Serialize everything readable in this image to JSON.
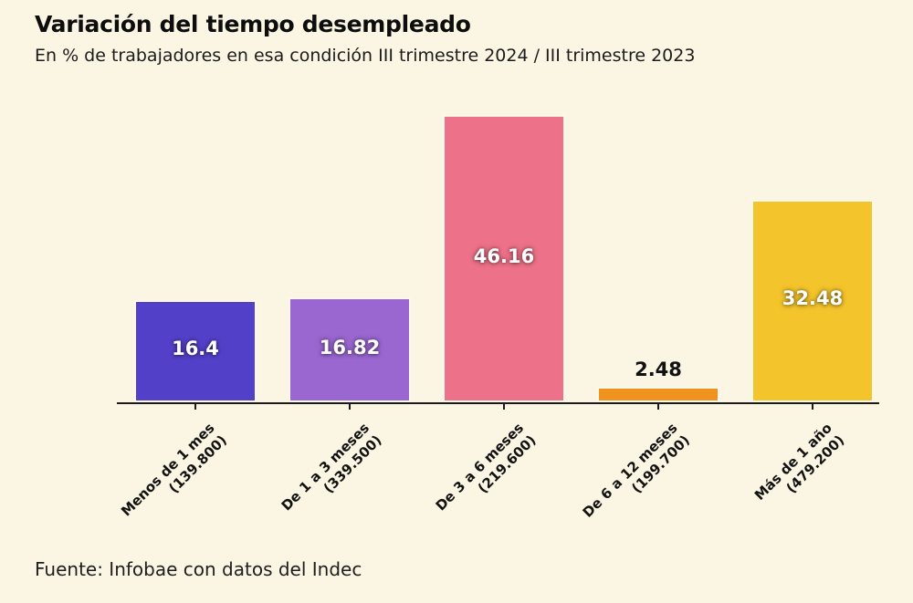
{
  "chart_data": {
    "type": "bar",
    "title": "Variación del tiempo desempleado",
    "subtitle": "En % de trabajadores en esa condición III trimestre 2024 / III trimestre 2023",
    "categories": [
      "Menos de 1 mes",
      "De 1 a 3 meses",
      "De 3 a 6 meses",
      "De 6 a 12 meses",
      "Más de 1 año"
    ],
    "category_counts": [
      "(139.800)",
      "(339.500)",
      "(219.600)",
      "(199.700)",
      "(479.200)"
    ],
    "values": [
      16.4,
      16.82,
      46.16,
      2.48,
      32.48
    ],
    "value_labels": [
      "16.4",
      "16.82",
      "46.16",
      "2.48",
      "32.48"
    ],
    "bar_colors": [
      "#5340c8",
      "#9a66d0",
      "#ed7188",
      "#ef931e",
      "#f3c42b"
    ],
    "value_label_inside_color": "#ffffff",
    "value_label_outside_color": "#111111",
    "background_color": "#fbf5e3",
    "axis_color": "#1a1a1a",
    "text_color": "#111111",
    "ylim": [
      0,
      48
    ],
    "grid": false,
    "legend": "none",
    "xlabel": "",
    "ylabel": "",
    "source": "Fuente: Infobae con datos del Indec"
  }
}
